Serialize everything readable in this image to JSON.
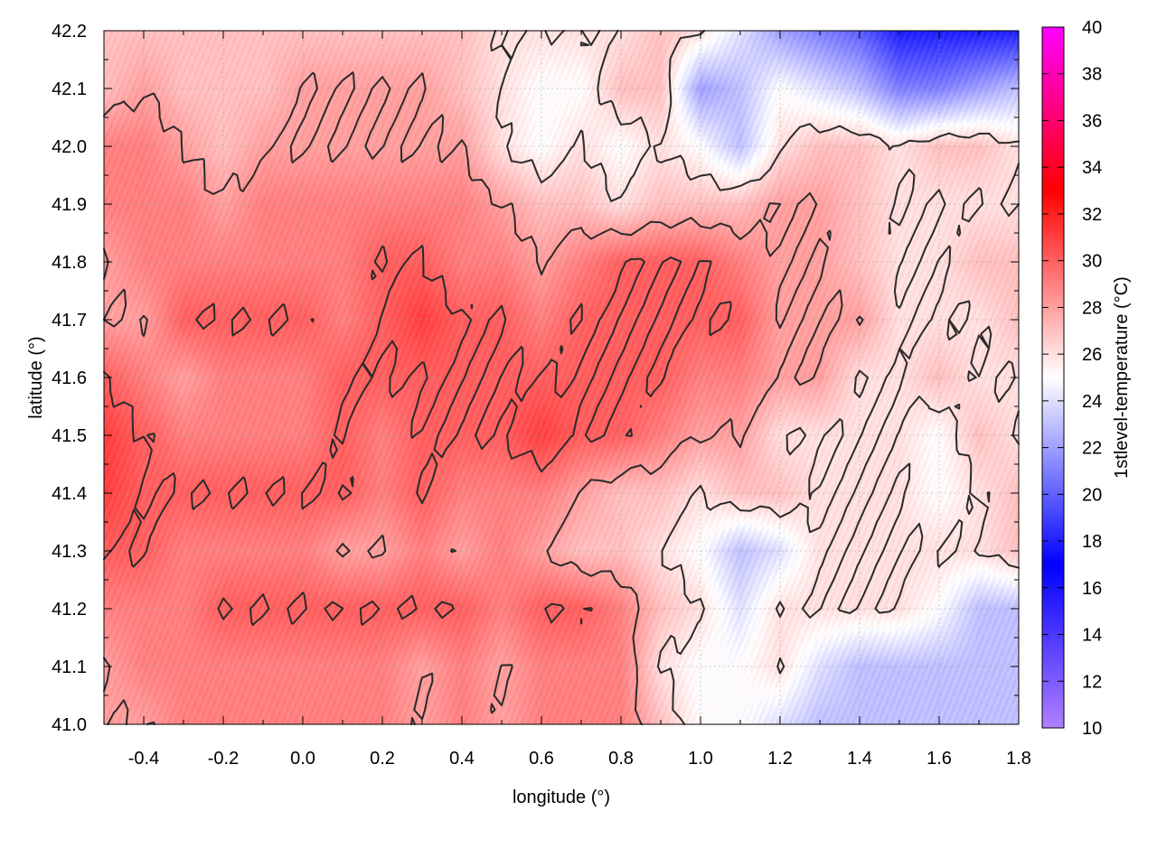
{
  "chart_data": {
    "type": "heatmap",
    "xlabel": "longitude (°)",
    "ylabel": "latitude (°)",
    "colorbar_label": "1stlevel-temperature (°C)",
    "xlim": [
      -0.5,
      1.8
    ],
    "ylim": [
      41.0,
      42.2
    ],
    "clim": [
      10,
      40
    ],
    "x_ticks": [
      "-0.4",
      "-0.2",
      "0.0",
      "0.2",
      "0.4",
      "0.6",
      "0.8",
      "1.0",
      "1.2",
      "1.4",
      "1.6",
      "1.8"
    ],
    "y_ticks": [
      "41.0",
      "41.1",
      "41.2",
      "41.3",
      "41.4",
      "41.5",
      "41.6",
      "41.7",
      "41.8",
      "41.9",
      "42.0",
      "42.1",
      "42.2"
    ],
    "c_ticks": [
      "10",
      "12",
      "14",
      "16",
      "18",
      "20",
      "22",
      "24",
      "26",
      "28",
      "30",
      "32",
      "34",
      "36",
      "38",
      "40"
    ],
    "colormap": [
      [
        10,
        "#b080ff"
      ],
      [
        17,
        "#0000ff"
      ],
      [
        25,
        "#ffffff"
      ],
      [
        33,
        "#ff0000"
      ],
      [
        40,
        "#ff00ff"
      ]
    ],
    "contour_levels": [
      26,
      28,
      30
    ],
    "grid": true,
    "grid_x_step": 0.1,
    "grid_rows_lat_desc": [
      42.2,
      42.1,
      42.0,
      41.9,
      41.8,
      41.7,
      41.6,
      41.5,
      41.4,
      41.3,
      41.2,
      41.1,
      41.0
    ],
    "values": [
      [
        27,
        27,
        27,
        27,
        27,
        27,
        27,
        27,
        27,
        27,
        26,
        26,
        26,
        26,
        27,
        26,
        24,
        22,
        21,
        20,
        18,
        18,
        18,
        18
      ],
      [
        27,
        28,
        27,
        27,
        27,
        28,
        28,
        28,
        28,
        27,
        26,
        25,
        25,
        27,
        27,
        22,
        23,
        25,
        24,
        23,
        21,
        21,
        22,
        23
      ],
      [
        29,
        29,
        28,
        27,
        28,
        28,
        28,
        28,
        28,
        28,
        26,
        25,
        26,
        25,
        26,
        25,
        23,
        26,
        27,
        27,
        26,
        27,
        27,
        26
      ],
      [
        29,
        29,
        29,
        28,
        29,
        29,
        29,
        29,
        29,
        29,
        28,
        27,
        27,
        26,
        27,
        27,
        27,
        28,
        28,
        27,
        26,
        26,
        26,
        26
      ],
      [
        28,
        29,
        29,
        29,
        29,
        29,
        29,
        30,
        30,
        29,
        29,
        28,
        29,
        30,
        30,
        30,
        29,
        28,
        28,
        27,
        26,
        26,
        27,
        27
      ],
      [
        28,
        28,
        30,
        30,
        30,
        30,
        29,
        30,
        31,
        30,
        30,
        29,
        30,
        30,
        30,
        30,
        30,
        28,
        28,
        28,
        26,
        26,
        26,
        27
      ],
      [
        30,
        29,
        28,
        29,
        29,
        29,
        30,
        30,
        30,
        30,
        30,
        30,
        30,
        30,
        30,
        29,
        29,
        28,
        28,
        26,
        26,
        27,
        26,
        26
      ],
      [
        31,
        30,
        29,
        29,
        29,
        29,
        30,
        29,
        30,
        30,
        30,
        31,
        30,
        30,
        29,
        28,
        28,
        26,
        26,
        26,
        26,
        25,
        27,
        26
      ],
      [
        31,
        30,
        30,
        30,
        30,
        30,
        30,
        29,
        30,
        29,
        29,
        29,
        28,
        27,
        27,
        26,
        27,
        27,
        26,
        26,
        26,
        25,
        26,
        27
      ],
      [
        30,
        30,
        29,
        29,
        29,
        29,
        28,
        28,
        29,
        28,
        29,
        28,
        27,
        27,
        26,
        25,
        23,
        24,
        26,
        26,
        26,
        26,
        26,
        27
      ],
      [
        29,
        29,
        29,
        30,
        30,
        30,
        30,
        30,
        30,
        30,
        29,
        30,
        30,
        29,
        27,
        26,
        24,
        26,
        26,
        26,
        26,
        25,
        23,
        23
      ],
      [
        28,
        29,
        29,
        29,
        29,
        29,
        29,
        29,
        28,
        29,
        28,
        29,
        29,
        29,
        26,
        25,
        25,
        26,
        24,
        23,
        23,
        23,
        23,
        23
      ],
      [
        28,
        28,
        29,
        29,
        29,
        29,
        29,
        29,
        28,
        29,
        28,
        29,
        29,
        29,
        27,
        25,
        25,
        24,
        23,
        23,
        23,
        23,
        23,
        23
      ]
    ]
  }
}
